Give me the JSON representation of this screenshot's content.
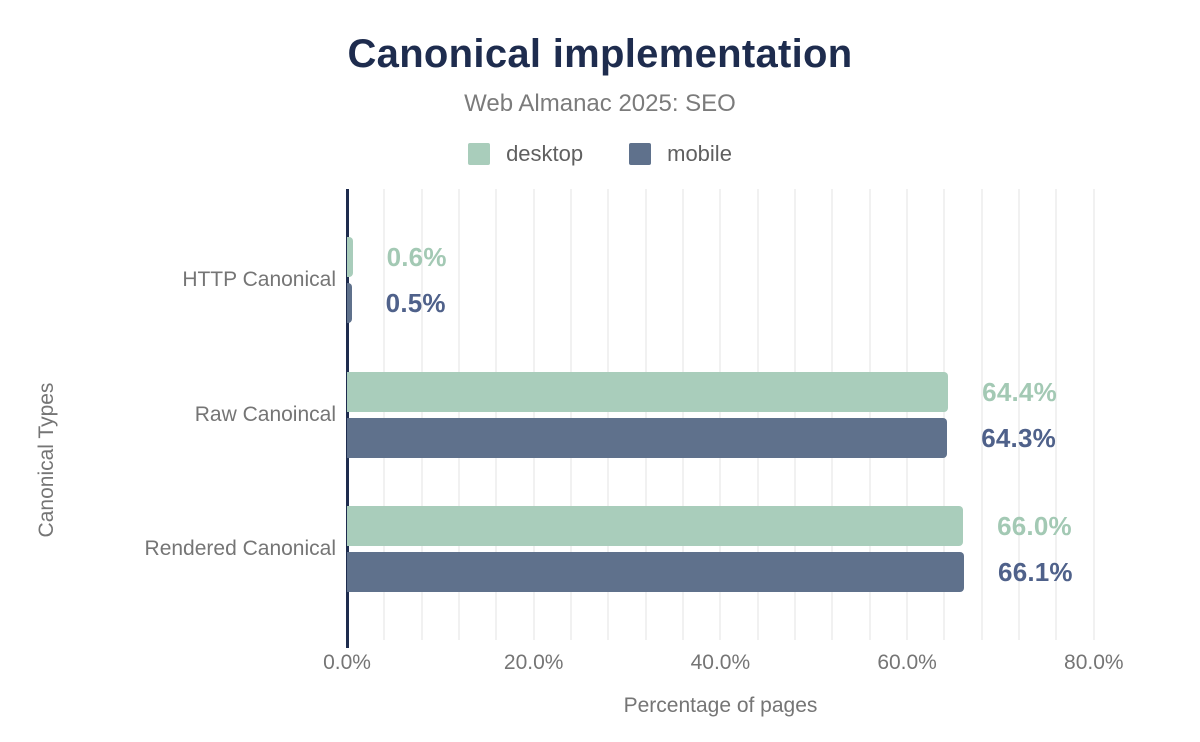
{
  "header": {
    "title": "Canonical implementation",
    "subtitle": "Web Almanac 2025: SEO"
  },
  "chart_data": {
    "type": "bar",
    "orientation": "horizontal",
    "title": "Canonical implementation",
    "subtitle": "Web Almanac 2025: SEO",
    "xlabel": "Percentage of pages",
    "ylabel": "Canonical Types",
    "categories": [
      "HTTP Canonical",
      "Raw Canoincal",
      "Rendered Canonical"
    ],
    "series": [
      {
        "name": "desktop",
        "color": "#a9cdbb",
        "label_color": "#a3c9b4",
        "values": [
          0.6,
          64.4,
          66.0
        ],
        "value_labels": [
          "0.6%",
          "64.4%",
          "66.0%"
        ]
      },
      {
        "name": "mobile",
        "color": "#5f718c",
        "label_color": "#4f618a",
        "values": [
          0.5,
          64.3,
          66.1
        ],
        "value_labels": [
          "0.5%",
          "64.3%",
          "66.1%"
        ]
      }
    ],
    "xlim": [
      0,
      80
    ],
    "x_ticks": [
      {
        "value": 0,
        "label": "0.0%"
      },
      {
        "value": 20,
        "label": "20.0%"
      },
      {
        "value": 40,
        "label": "40.0%"
      },
      {
        "value": 60,
        "label": "60.0%"
      },
      {
        "value": 80,
        "label": "80.0%"
      }
    ],
    "grid": true,
    "grid_step_percent": 4,
    "legend_position": "top",
    "colors": {
      "axis": "#1e2c4e",
      "grid": "#f1f1f1",
      "title": "#1e2c4e",
      "subtitle": "#7b7b7b",
      "muted_text": "#757575"
    }
  }
}
